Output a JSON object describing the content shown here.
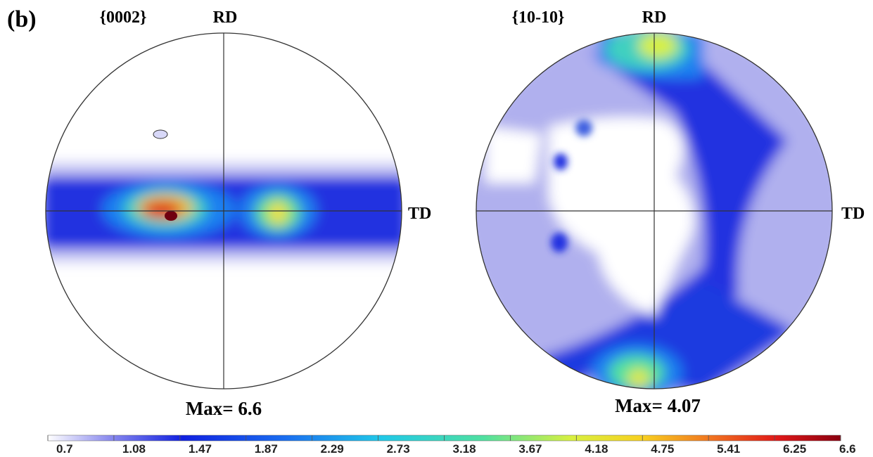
{
  "panel_label": "(b)",
  "figures": [
    {
      "title": "{0002}",
      "rd": "RD",
      "td": "TD",
      "max_label": "Max= 6.6"
    },
    {
      "title": "{10-10}",
      "rd": "RD",
      "td": "TD",
      "max_label": "Max= 4.07"
    }
  ],
  "colorbar": {
    "ticks": [
      0.7,
      1.08,
      1.47,
      1.87,
      2.29,
      2.73,
      3.18,
      3.67,
      4.18,
      4.75,
      5.41,
      6.25,
      6.6
    ]
  }
}
